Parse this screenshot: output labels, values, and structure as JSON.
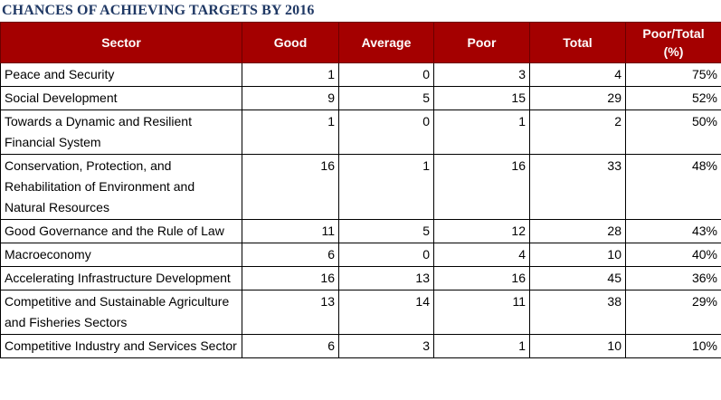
{
  "title": "CHANCES OF ACHIEVING TARGETS BY 2016",
  "headers": {
    "sector": "Sector",
    "good": "Good",
    "average": "Average",
    "poor": "Poor",
    "total": "Total",
    "poor_total_line1": "Poor/Total",
    "poor_total_line2": "(%)"
  },
  "rows": [
    {
      "sector": "Peace and Security",
      "good": "1",
      "average": "0",
      "poor": "3",
      "total": "4",
      "pct": "75%"
    },
    {
      "sector": "Social Development",
      "good": "9",
      "average": "5",
      "poor": "15",
      "total": "29",
      "pct": "52%"
    },
    {
      "sector": "Towards a Dynamic and Resilient Financial System",
      "good": "1",
      "average": "0",
      "poor": "1",
      "total": "2",
      "pct": "50%"
    },
    {
      "sector": "Conservation, Protection, and Rehabilitation of Environment and Natural Resources",
      "good": "16",
      "average": "1",
      "poor": "16",
      "total": "33",
      "pct": "48%"
    },
    {
      "sector": "Good Governance and the Rule of Law",
      "good": "11",
      "average": "5",
      "poor": "12",
      "total": "28",
      "pct": "43%"
    },
    {
      "sector": "Macroeconomy",
      "good": "6",
      "average": "0",
      "poor": "4",
      "total": "10",
      "pct": "40%"
    },
    {
      "sector": "Accelerating Infrastructure Development",
      "good": "16",
      "average": "13",
      "poor": "16",
      "total": "45",
      "pct": "36%"
    },
    {
      "sector": "Competitive and Sustainable Agriculture and Fisheries Sectors",
      "good": "13",
      "average": "14",
      "poor": "11",
      "total": "38",
      "pct": "29%"
    },
    {
      "sector": "Competitive Industry and Services Sector",
      "good": "6",
      "average": "3",
      "poor": "1",
      "total": "10",
      "pct": "10%"
    }
  ]
}
